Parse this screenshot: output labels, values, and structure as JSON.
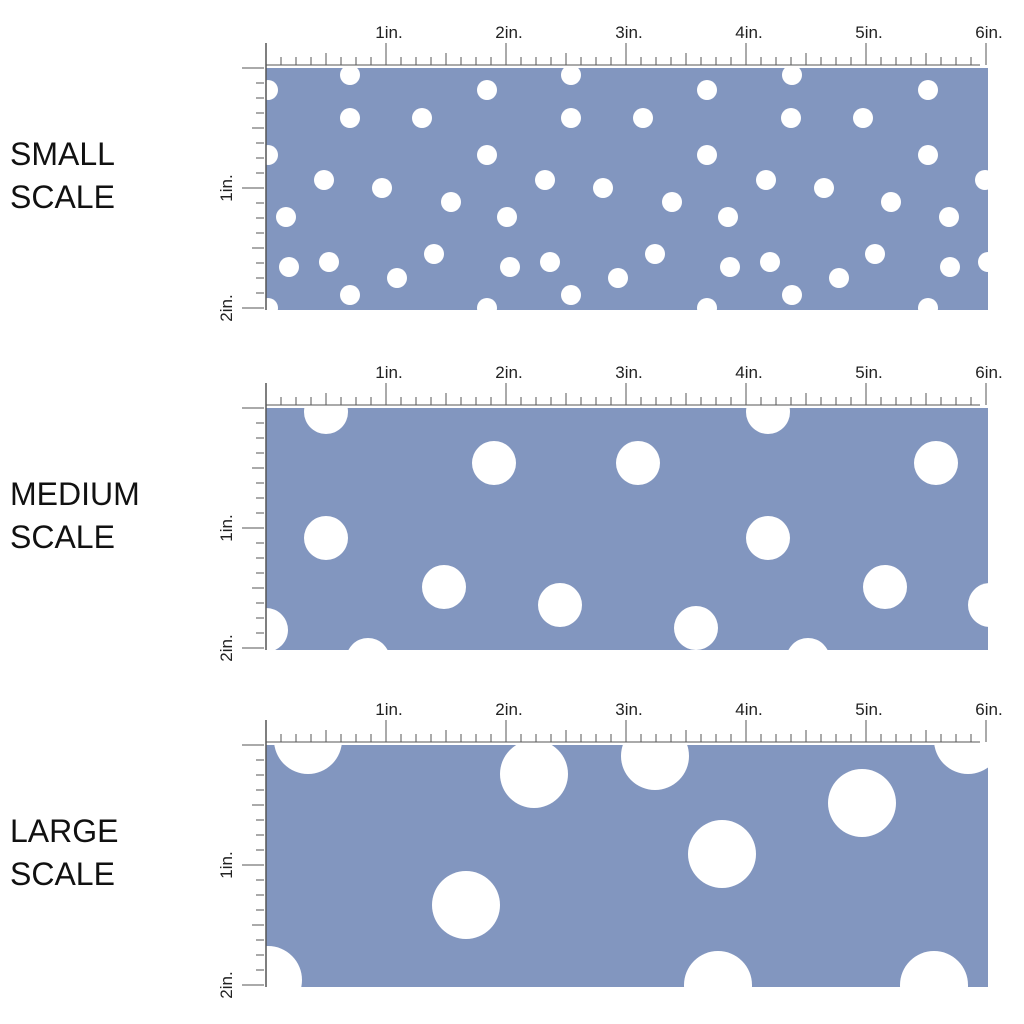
{
  "panels": [
    {
      "label": [
        "SMALL",
        "SCALE"
      ]
    },
    {
      "label": [
        "MEDIUM",
        "SCALE"
      ]
    },
    {
      "label": [
        "LARGE",
        "SCALE"
      ]
    }
  ],
  "ruler": {
    "x_labels": [
      "1in.",
      "2in.",
      "3in.",
      "4in.",
      "5in.",
      "6in."
    ],
    "y_labels": [
      "1in.",
      "2in."
    ]
  }
}
